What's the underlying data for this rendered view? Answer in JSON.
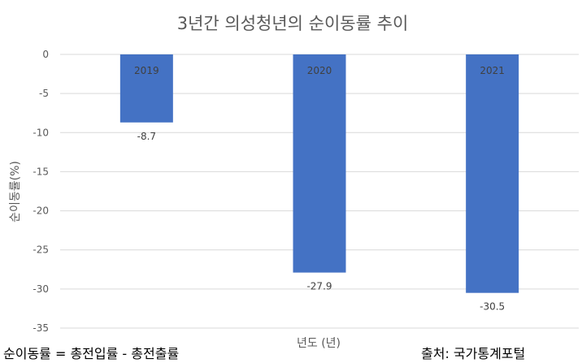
{
  "chart_data": {
    "type": "bar",
    "title": "3년간 의성청년의 순이동률 추이",
    "xlabel": "년도 (년)",
    "ylabel": "순이동률(%)",
    "categories": [
      "2019",
      "2020",
      "2021"
    ],
    "values": [
      -8.7,
      -27.9,
      -30.5
    ],
    "data_labels": [
      "-8.7",
      "-27.9",
      "-30.5"
    ],
    "yticks": [
      "0",
      "-5",
      "-10",
      "-15",
      "-20",
      "-25",
      "-30",
      "-35"
    ],
    "ylim": [
      -35,
      0
    ],
    "grid": true,
    "bar_color": "#4472C4",
    "grid_color": "#D9D9D9"
  },
  "footnotes": {
    "formula": "순이동률 = 총전입률 - 총전출률",
    "source": "출처: 국가통계포털"
  }
}
